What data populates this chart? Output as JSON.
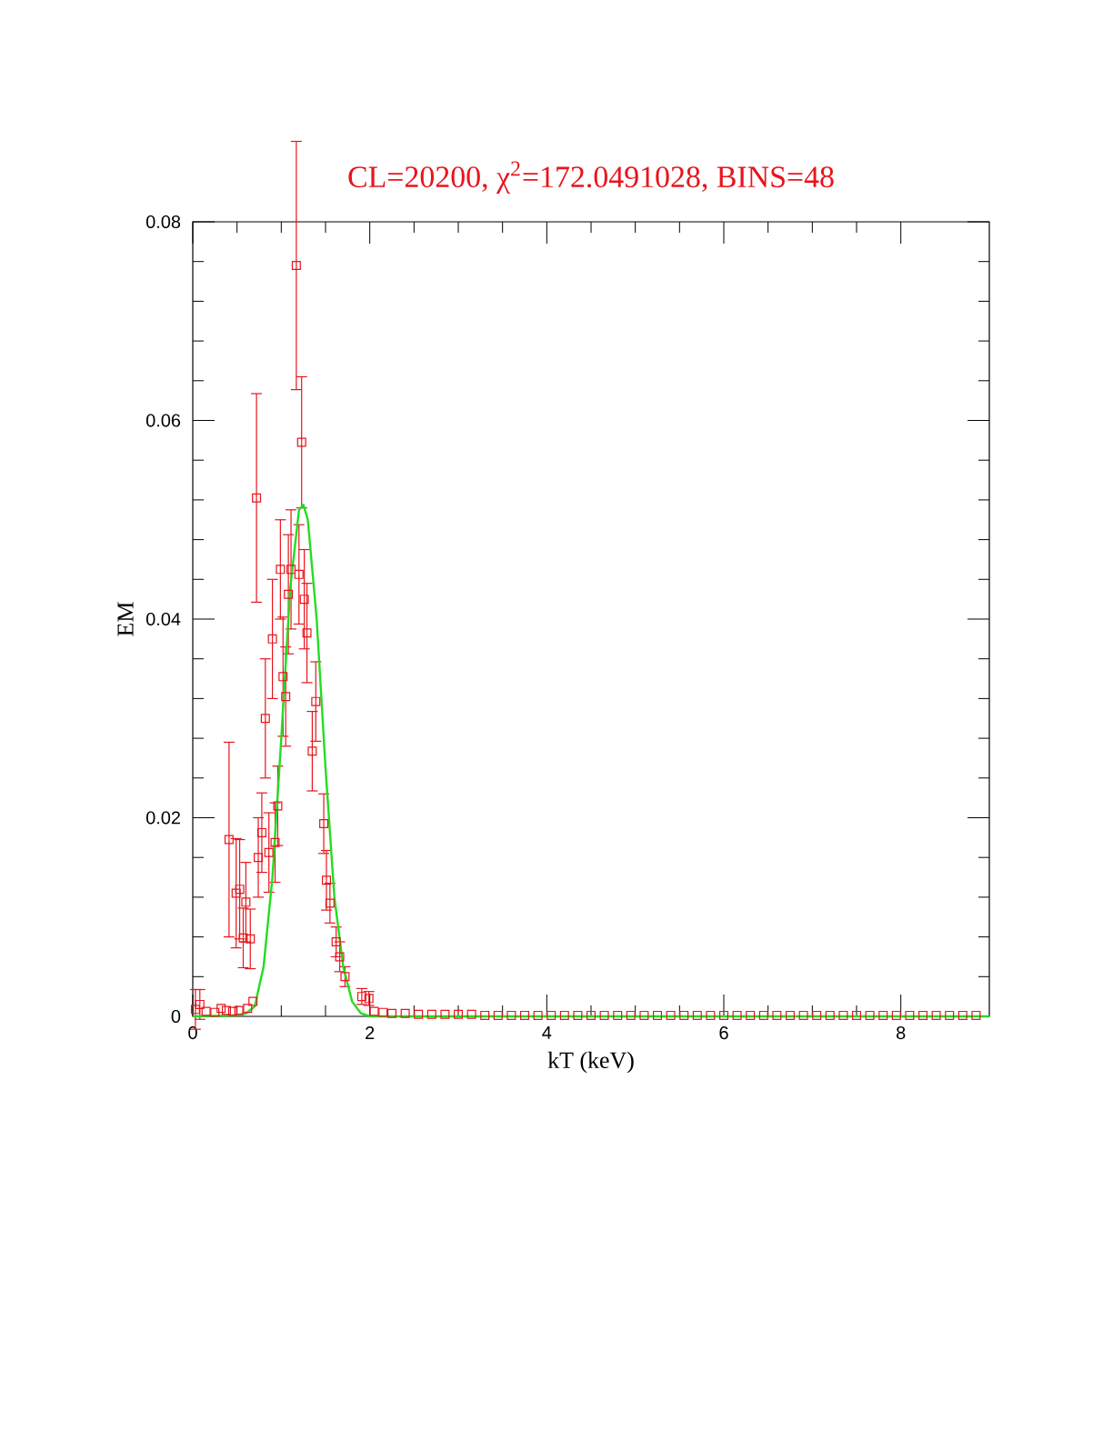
{
  "chart_data": {
    "type": "scatter",
    "title": "CL=20200, χ$^{2}$=172.0491028, BINS=48",
    "xlabel": "kT (keV)",
    "ylabel": "EM",
    "xlim": [
      0,
      9
    ],
    "ylim": [
      0,
      0.08
    ],
    "xticks": [
      0,
      2,
      4,
      6,
      8
    ],
    "yticks": [
      0,
      0.02,
      0.04,
      0.06,
      0.08
    ],
    "grid": false,
    "series": [
      {
        "color": "#e8141c",
        "marker": "square",
        "x": [
          0.03,
          0.08,
          0.15,
          0.25,
          0.32,
          0.38,
          0.41,
          0.45,
          0.49,
          0.52,
          0.53,
          0.57,
          0.6,
          0.62,
          0.65,
          0.68,
          0.72,
          0.74,
          0.78,
          0.82,
          0.86,
          0.9,
          0.93,
          0.96,
          0.99,
          1.02,
          1.05,
          1.08,
          1.11,
          1.17,
          1.2,
          1.23,
          1.26,
          1.29,
          1.35,
          1.39,
          1.48,
          1.51,
          1.55,
          1.62,
          1.66,
          1.72,
          1.91,
          1.99,
          2.05,
          2.15,
          2.25,
          2.4,
          2.55,
          2.7,
          2.85,
          3.0,
          3.15,
          3.3,
          3.45,
          3.6,
          3.75,
          3.9,
          4.05,
          4.2,
          4.35,
          4.5,
          4.65,
          4.8,
          4.95,
          5.1,
          5.25,
          5.4,
          5.55,
          5.7,
          5.85,
          6.0,
          6.15,
          6.3,
          6.45,
          6.6,
          6.75,
          6.9,
          7.05,
          7.2,
          7.35,
          7.5,
          7.65,
          7.8,
          7.95,
          8.1,
          8.25,
          8.4,
          8.55,
          8.7,
          8.85
        ],
        "values": [
          0.0007,
          0.0012,
          0.0005,
          0.0004,
          0.0008,
          0.0006,
          0.0178,
          0.0005,
          0.0124,
          0.0006,
          0.0128,
          0.0079,
          0.0115,
          0.0008,
          0.0078,
          0.0015,
          0.0522,
          0.016,
          0.0185,
          0.03,
          0.0165,
          0.038,
          0.0175,
          0.0212,
          0.045,
          0.0342,
          0.0322,
          0.0425,
          0.045,
          0.0756,
          0.0445,
          0.0578,
          0.042,
          0.0386,
          0.0267,
          0.0317,
          0.0194,
          0.0137,
          0.0114,
          0.0075,
          0.006,
          0.004,
          0.002,
          0.0018,
          0.0005,
          0.0004,
          0.0003,
          0.0003,
          0.0002,
          0.0002,
          0.0002,
          0.0002,
          0.0002,
          0.0001,
          0.0001,
          0.0001,
          0.0001,
          0.0001,
          0.0001,
          0.0001,
          0.0001,
          0.0001,
          0.0001,
          0.0001,
          0.0001,
          0.0001,
          0.0001,
          0.0001,
          0.0001,
          0.0001,
          0.0001,
          0.0001,
          0.0001,
          0.0001,
          0.0001,
          0.0001,
          0.0001,
          0.0001,
          0.0001,
          0.0001,
          0.0001,
          0.0001,
          0.0001,
          0.0001,
          0.0001,
          0.0001,
          0.0001,
          0.0001,
          0.0001,
          0.0001,
          0.0001
        ],
        "errors": [
          0.002,
          0.0015,
          null,
          null,
          null,
          null,
          0.0098,
          null,
          0.0055,
          null,
          0.005,
          0.003,
          0.004,
          null,
          0.003,
          null,
          0.0105,
          0.004,
          0.004,
          0.006,
          0.004,
          0.006,
          0.004,
          0.004,
          0.005,
          0.006,
          0.005,
          0.006,
          0.006,
          0.0125,
          0.005,
          0.0066,
          0.005,
          0.005,
          0.004,
          0.004,
          0.003,
          0.003,
          0.002,
          0.0015,
          0.0015,
          0.001,
          0.0008,
          0.0007,
          null,
          null,
          null,
          null,
          null,
          null,
          null,
          null,
          null,
          null,
          null,
          null,
          null,
          null,
          null,
          null,
          null,
          null,
          null,
          null,
          null,
          null,
          null,
          null,
          null,
          null,
          null,
          null,
          null,
          null,
          null,
          null,
          null,
          null,
          null,
          null,
          null,
          null,
          null,
          null,
          null,
          null,
          null,
          null,
          null,
          null,
          null
        ]
      },
      {
        "type": "line",
        "color": "#22dd22",
        "marker": "none",
        "line_style": "solid",
        "x": [
          0,
          0.5,
          0.6,
          0.7,
          0.8,
          0.9,
          1.0,
          1.1,
          1.2,
          1.25,
          1.3,
          1.4,
          1.5,
          1.6,
          1.7,
          1.8,
          1.9,
          2.0,
          9
        ],
        "values": [
          0,
          0.0001,
          0.0003,
          0.001,
          0.005,
          0.014,
          0.028,
          0.043,
          0.051,
          0.0515,
          0.05,
          0.04,
          0.025,
          0.012,
          0.005,
          0.0015,
          0.0003,
          0,
          0
        ]
      }
    ]
  }
}
